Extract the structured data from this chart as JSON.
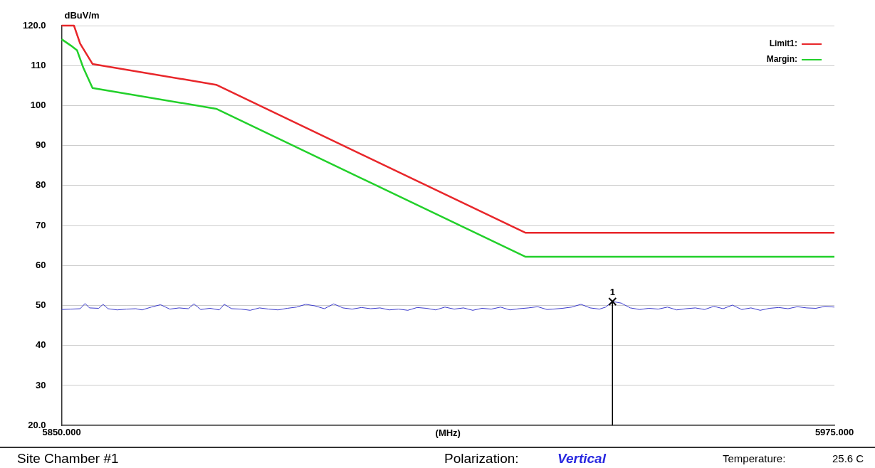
{
  "chart_data": {
    "type": "line",
    "ylabel": "dBuV/m",
    "xlabel": "(MHz)",
    "xlim": [
      5850,
      5975
    ],
    "xticks": [
      {
        "value": 5850,
        "label": "5850.000"
      },
      {
        "value": 5975,
        "label": "5975.000"
      }
    ],
    "ylim": [
      20,
      120
    ],
    "yticks": [
      {
        "value": 20,
        "label": "20.0"
      },
      30,
      40,
      50,
      60,
      70,
      80,
      90,
      100,
      110,
      {
        "value": 120,
        "label": "120.0"
      }
    ],
    "grid": "y",
    "legend": "top right",
    "marker": "none",
    "line_style": "solid",
    "series": [
      {
        "name": "Limit1:",
        "color": "#e8262a",
        "x": [
          5850,
          5852,
          5853,
          5855,
          5875,
          5925,
          5975
        ],
        "values": [
          120,
          120,
          115.5,
          110.4,
          105.2,
          68.2,
          68.2
        ]
      },
      {
        "name": "Margin:",
        "color": "#22d02a",
        "x": [
          5850,
          5851.5,
          5852.5,
          5853.5,
          5855,
          5875,
          5925,
          5975
        ],
        "values": [
          116.6,
          115,
          113.8,
          109.5,
          104.4,
          99.2,
          62.2,
          62.2
        ]
      },
      {
        "color": "#3a3acc",
        "x": [
          5850,
          5851.5,
          5853,
          5853.8,
          5854.5,
          5856,
          5856.7,
          5857.5,
          5859,
          5860.5,
          5862,
          5863,
          5864.5,
          5866,
          5867.5,
          5869,
          5870.5,
          5871.4,
          5872.5,
          5874,
          5875.5,
          5876.3,
          5877.5,
          5879,
          5880.5,
          5882,
          5883.5,
          5885,
          5886.5,
          5888,
          5889.5,
          5891,
          5892.5,
          5894,
          5895.5,
          5897,
          5898.5,
          5900,
          5901.5,
          5903,
          5904.5,
          5906,
          5907.5,
          5909,
          5910.5,
          5912,
          5913.5,
          5915,
          5916.5,
          5918,
          5919.5,
          5921,
          5922.5,
          5924,
          5925.5,
          5927,
          5928.5,
          5929.5,
          5931,
          5932.5,
          5934,
          5935.5,
          5937,
          5938,
          5939.1,
          5940.5,
          5942,
          5943.5,
          5945,
          5946.5,
          5948,
          5949.5,
          5951,
          5952.5,
          5954,
          5955.5,
          5957,
          5958.5,
          5960,
          5961.5,
          5963,
          5964.5,
          5966,
          5967.5,
          5969,
          5970.5,
          5972,
          5973.5,
          5975
        ],
        "values": [
          49,
          49.1,
          49.2,
          50.5,
          49.4,
          49.3,
          50.3,
          49.2,
          48.9,
          49.1,
          49.2,
          48.9,
          49.6,
          50.2,
          49.1,
          49.4,
          49.2,
          50.4,
          49.0,
          49.3,
          48.9,
          50.3,
          49.2,
          49.1,
          48.8,
          49.4,
          49.1,
          48.9,
          49.3,
          49.6,
          50.3,
          49.9,
          49.2,
          50.4,
          49.4,
          49.1,
          49.5,
          49.2,
          49.4,
          48.9,
          49.1,
          48.8,
          49.5,
          49.3,
          48.9,
          49.6,
          49.1,
          49.4,
          48.8,
          49.3,
          49.1,
          49.6,
          48.9,
          49.2,
          49.4,
          49.7,
          49.0,
          49.1,
          49.3,
          49.6,
          50.3,
          49.4,
          49.1,
          49.6,
          51,
          50.6,
          49.4,
          49.0,
          49.3,
          49.1,
          49.6,
          48.9,
          49.2,
          49.4,
          49.0,
          49.8,
          49.2,
          50.1,
          49.0,
          49.4,
          48.8,
          49.3,
          49.5,
          49.2,
          49.7,
          49.4,
          49.3,
          49.8,
          49.6
        ]
      }
    ],
    "annotations": [
      {
        "text": "1",
        "x": 5939.1,
        "y": 51
      },
      "Site  Chamber #1",
      "Polarization:",
      "Vertical",
      "Temperature:",
      "25.6 C"
    ],
    "ref_lines": [
      {
        "axis": "x",
        "value": 5939.1,
        "color": "#000000"
      }
    ]
  }
}
